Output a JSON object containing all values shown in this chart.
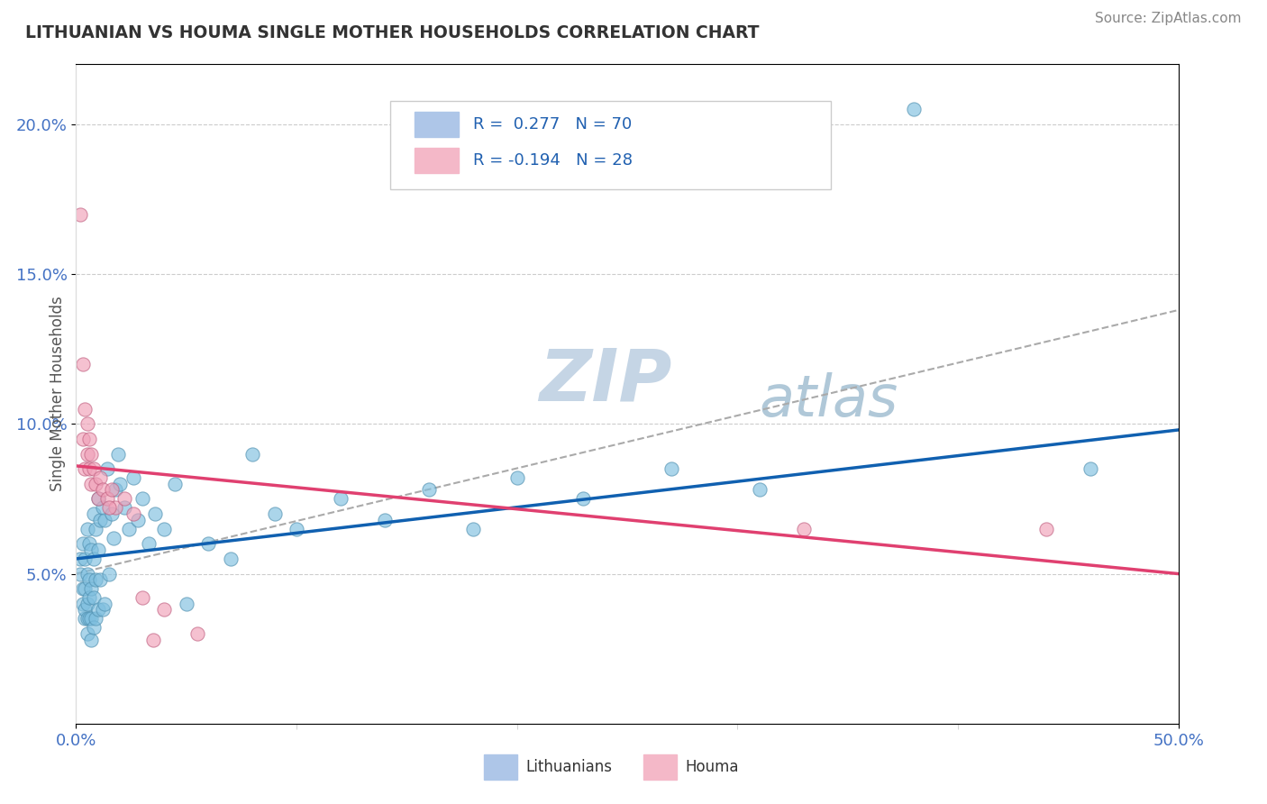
{
  "title": "LITHUANIAN VS HOUMA SINGLE MOTHER HOUSEHOLDS CORRELATION CHART",
  "source": "Source: ZipAtlas.com",
  "ylabel": "Single Mother Households",
  "xlim": [
    0.0,
    0.5
  ],
  "ylim": [
    0.0,
    0.22
  ],
  "yticks": [
    0.05,
    0.1,
    0.15,
    0.2
  ],
  "ytick_labels": [
    "5.0%",
    "10.0%",
    "15.0%",
    "20.0%"
  ],
  "xtick_labels": [
    "0.0%",
    "50.0%"
  ],
  "watermark": "ZIPatlas",
  "watermark_color": "#c8d8e8",
  "blue_color": "#7fbfdf",
  "blue_edge": "#5090b0",
  "pink_color": "#f0a0b8",
  "pink_edge": "#c06080",
  "blue_line_color": "#1060b0",
  "pink_line_color": "#e04070",
  "dashed_line_color": "#aaaaaa",
  "blue_line_x0": 0.0,
  "blue_line_y0": 0.055,
  "blue_line_x1": 0.5,
  "blue_line_y1": 0.098,
  "pink_line_x0": 0.0,
  "pink_line_y0": 0.086,
  "pink_line_x1": 0.5,
  "pink_line_y1": 0.05,
  "dash_line_x0": 0.0,
  "dash_line_y0": 0.05,
  "dash_line_x1": 0.5,
  "dash_line_y1": 0.138,
  "lith_x": [
    0.002,
    0.002,
    0.003,
    0.003,
    0.003,
    0.004,
    0.004,
    0.004,
    0.004,
    0.005,
    0.005,
    0.005,
    0.005,
    0.005,
    0.006,
    0.006,
    0.006,
    0.006,
    0.007,
    0.007,
    0.007,
    0.007,
    0.008,
    0.008,
    0.008,
    0.008,
    0.009,
    0.009,
    0.009,
    0.01,
    0.01,
    0.01,
    0.011,
    0.011,
    0.012,
    0.012,
    0.013,
    0.013,
    0.014,
    0.015,
    0.016,
    0.017,
    0.018,
    0.019,
    0.02,
    0.022,
    0.024,
    0.026,
    0.028,
    0.03,
    0.033,
    0.036,
    0.04,
    0.045,
    0.05,
    0.06,
    0.07,
    0.08,
    0.09,
    0.1,
    0.12,
    0.14,
    0.16,
    0.18,
    0.2,
    0.23,
    0.27,
    0.31,
    0.38,
    0.46
  ],
  "lith_y": [
    0.055,
    0.05,
    0.045,
    0.06,
    0.04,
    0.035,
    0.055,
    0.045,
    0.038,
    0.065,
    0.05,
    0.04,
    0.035,
    0.03,
    0.042,
    0.06,
    0.048,
    0.035,
    0.058,
    0.045,
    0.035,
    0.028,
    0.07,
    0.055,
    0.042,
    0.032,
    0.065,
    0.048,
    0.035,
    0.075,
    0.058,
    0.038,
    0.068,
    0.048,
    0.072,
    0.038,
    0.068,
    0.04,
    0.085,
    0.05,
    0.07,
    0.062,
    0.078,
    0.09,
    0.08,
    0.072,
    0.065,
    0.082,
    0.068,
    0.075,
    0.06,
    0.07,
    0.065,
    0.08,
    0.04,
    0.06,
    0.055,
    0.09,
    0.07,
    0.065,
    0.075,
    0.068,
    0.078,
    0.065,
    0.082,
    0.075,
    0.085,
    0.078,
    0.205,
    0.085
  ],
  "houma_x": [
    0.002,
    0.003,
    0.003,
    0.004,
    0.004,
    0.005,
    0.005,
    0.006,
    0.006,
    0.007,
    0.007,
    0.008,
    0.009,
    0.01,
    0.011,
    0.012,
    0.014,
    0.016,
    0.018,
    0.022,
    0.026,
    0.03,
    0.04,
    0.055,
    0.33,
    0.44,
    0.015,
    0.035
  ],
  "houma_y": [
    0.17,
    0.12,
    0.095,
    0.105,
    0.085,
    0.1,
    0.09,
    0.095,
    0.085,
    0.08,
    0.09,
    0.085,
    0.08,
    0.075,
    0.082,
    0.078,
    0.075,
    0.078,
    0.072,
    0.075,
    0.07,
    0.042,
    0.038,
    0.03,
    0.065,
    0.065,
    0.072,
    0.028
  ]
}
